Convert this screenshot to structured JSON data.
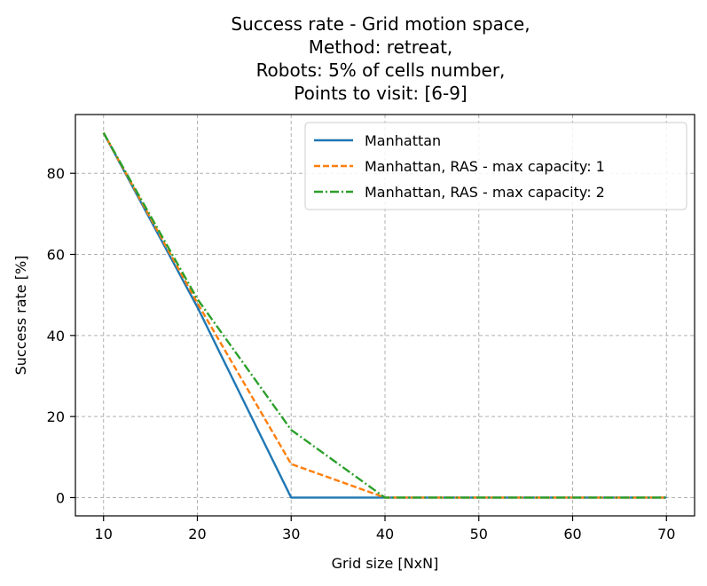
{
  "chart_data": {
    "type": "line",
    "title_lines": [
      "Success rate - Grid motion space,",
      "Method: retreat,",
      "Robots: 5% of cells number,",
      "Points to visit: [6-9]"
    ],
    "xlabel": "Grid size [NxN]",
    "ylabel": "Success rate [%]",
    "x": [
      10,
      20,
      30,
      40,
      50,
      60,
      70
    ],
    "xlim": [
      7,
      73
    ],
    "ylim": [
      -4.5,
      94.5
    ],
    "xticks": [
      10,
      20,
      30,
      40,
      50,
      60,
      70
    ],
    "yticks": [
      0,
      20,
      40,
      60,
      80
    ],
    "grid": true,
    "legend_position": "top-right",
    "series": [
      {
        "name": "Manhattan",
        "values": [
          90,
          47,
          0,
          0,
          0,
          0,
          0
        ],
        "color": "#1f77b4",
        "dash": "solid"
      },
      {
        "name": "Manhattan, RAS - max capacity: 1",
        "values": [
          90,
          48,
          8.3,
          0,
          0,
          0,
          0
        ],
        "color": "#ff7f0e",
        "dash": "dashed"
      },
      {
        "name": "Manhattan, RAS - max capacity: 2",
        "values": [
          90,
          49,
          16.7,
          0,
          0,
          0,
          0
        ],
        "color": "#2ca02c",
        "dash": "dashdot"
      }
    ]
  }
}
